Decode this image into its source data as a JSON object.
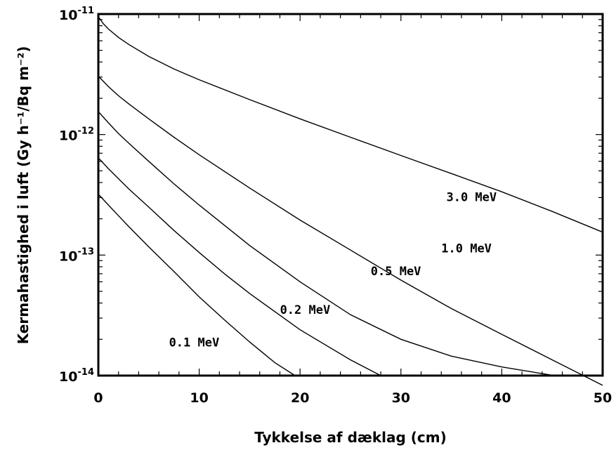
{
  "chart_data": {
    "type": "line",
    "xlabel": "Tykkelse af dæklag (cm)",
    "ylabel": "Kermahastighed i luft (Gy h⁻¹/Bq m⁻²)",
    "xlim": [
      0,
      50
    ],
    "ylim": [
      1e-14,
      1e-11
    ],
    "yscale": "log",
    "grid": false,
    "x_ticks": [
      {
        "value": 0,
        "label": "0"
      },
      {
        "value": 10,
        "label": "10"
      },
      {
        "value": 20,
        "label": "20"
      },
      {
        "value": 30,
        "label": "30"
      },
      {
        "value": 40,
        "label": "40"
      },
      {
        "value": 50,
        "label": "50"
      }
    ],
    "y_ticks": [
      {
        "value": 1e-11,
        "base": "10",
        "exponent": "-11"
      },
      {
        "value": 1e-12,
        "base": "10",
        "exponent": "-12"
      },
      {
        "value": 1e-13,
        "base": "10",
        "exponent": "-13"
      },
      {
        "value": 1e-14,
        "base": "10",
        "exponent": "-14"
      }
    ],
    "series": [
      {
        "name": "3.0 MeV",
        "label_at": [
          37,
          2.8e-13
        ],
        "x": [
          0,
          0.5,
          1,
          2,
          3,
          5,
          7.5,
          10,
          15,
          20,
          25,
          30,
          35,
          40,
          45,
          50
        ],
        "y": [
          9.5e-12,
          8.3e-12,
          7.5e-12,
          6.4e-12,
          5.6e-12,
          4.45e-12,
          3.5e-12,
          2.85e-12,
          1.95e-12,
          1.35e-12,
          9.5e-13,
          6.7e-13,
          4.75e-13,
          3.35e-13,
          2.3e-13,
          1.55e-13
        ]
      },
      {
        "name": "1.0 MeV",
        "label_at": [
          36.5,
          1.05e-13
        ],
        "x": [
          0,
          1,
          2,
          3,
          5,
          7.5,
          10,
          15,
          20,
          25,
          30,
          35,
          40,
          45,
          50
        ],
        "y": [
          3.05e-12,
          2.5e-12,
          2.1e-12,
          1.8e-12,
          1.35e-12,
          9.5e-13,
          6.8e-13,
          3.6e-13,
          1.95e-13,
          1.1e-13,
          6.2e-14,
          3.6e-14,
          2.2e-14,
          1.35e-14,
          8.3e-15
        ]
      },
      {
        "name": "0.5 MeV",
        "label_at": [
          29.5,
          6.8e-14
        ],
        "x": [
          0,
          1,
          2,
          3,
          5,
          7.5,
          10,
          15,
          20,
          25,
          30,
          35,
          40,
          45.2
        ],
        "y": [
          1.55e-12,
          1.25e-12,
          1.02e-12,
          8.5e-13,
          6e-13,
          3.9e-13,
          2.6e-13,
          1.2e-13,
          6e-14,
          3.2e-14,
          2e-14,
          1.45e-14,
          1.18e-14,
          1e-14
        ]
      },
      {
        "name": "0.2 MeV",
        "label_at": [
          20.5,
          3.25e-14
        ],
        "x": [
          0,
          1,
          2,
          3,
          5,
          7.5,
          10,
          12.5,
          15,
          20,
          25,
          28
        ],
        "y": [
          6.4e-13,
          5.2e-13,
          4.3e-13,
          3.55e-13,
          2.5e-13,
          1.6e-13,
          1.05e-13,
          7e-14,
          4.8e-14,
          2.4e-14,
          1.35e-14,
          1e-14
        ]
      },
      {
        "name": "0.1 MeV",
        "label_at": [
          9.5,
          1.75e-14
        ],
        "x": [
          0,
          1,
          2,
          3,
          5,
          7.5,
          10,
          12.5,
          15,
          17.5,
          19.5
        ],
        "y": [
          3.2e-13,
          2.6e-13,
          2.12e-13,
          1.73e-13,
          1.17e-13,
          7.3e-14,
          4.5e-14,
          2.9e-14,
          1.9e-14,
          1.28e-14,
          1e-14
        ]
      }
    ]
  }
}
